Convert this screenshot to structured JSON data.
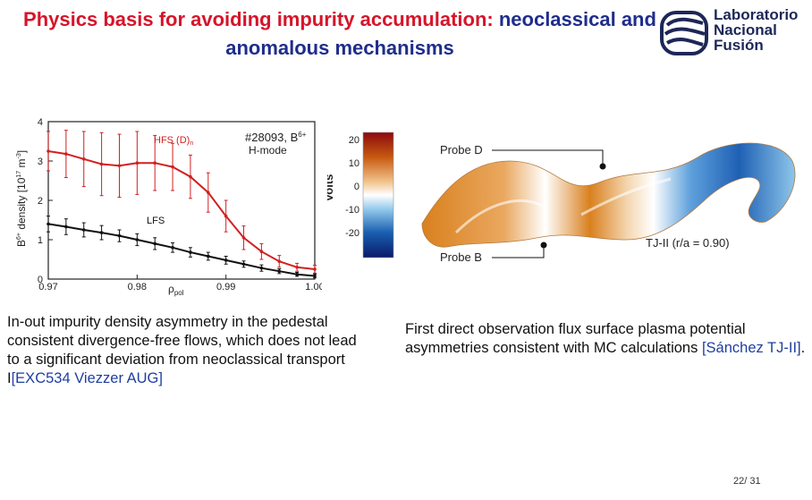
{
  "slide": {
    "title_part1": "Physics basis for avoiding impurity accumulation: ",
    "title_part2": "neoclassical and anomalous mechanisms",
    "page_number": "22/ 31"
  },
  "logo": {
    "line1": "Laboratorio",
    "line2": "Nacional",
    "line3": "Fusión"
  },
  "chart_data": {
    "type": "line",
    "annotation_shot": "#28093, B",
    "annotation_mode": "H-mode",
    "xlabel": "ρpol",
    "ylabel": "B density [10 m ]",
    "xlim": [
      0.97,
      1.0
    ],
    "ylim": [
      0,
      4
    ],
    "xticks": [
      "0.97",
      "0.98",
      "0.99",
      "1.00"
    ],
    "yticks": [
      "0",
      "1",
      "2",
      "3",
      "4"
    ],
    "series": [
      {
        "name": "HFS (D)",
        "color": "#d22020",
        "x": [
          0.97,
          0.972,
          0.974,
          0.976,
          0.978,
          0.98,
          0.982,
          0.984,
          0.986,
          0.988,
          0.99,
          0.992,
          0.994,
          0.996,
          0.998,
          1.0
        ],
        "y": [
          3.25,
          3.18,
          3.05,
          2.92,
          2.88,
          2.95,
          2.95,
          2.85,
          2.6,
          2.2,
          1.6,
          1.05,
          0.7,
          0.45,
          0.3,
          0.25
        ],
        "err": [
          0.5,
          0.6,
          0.7,
          0.8,
          0.8,
          0.8,
          0.7,
          0.6,
          0.55,
          0.5,
          0.4,
          0.3,
          0.2,
          0.15,
          0.1,
          0.1
        ]
      },
      {
        "name": "LFS",
        "color": "#111111",
        "x": [
          0.97,
          0.972,
          0.974,
          0.976,
          0.978,
          0.98,
          0.982,
          0.984,
          0.986,
          0.988,
          0.99,
          0.992,
          0.994,
          0.996,
          0.998,
          1.0
        ],
        "y": [
          1.4,
          1.33,
          1.25,
          1.18,
          1.1,
          1.0,
          0.9,
          0.8,
          0.68,
          0.58,
          0.48,
          0.38,
          0.28,
          0.2,
          0.12,
          0.08
        ],
        "err": [
          0.2,
          0.2,
          0.18,
          0.18,
          0.15,
          0.15,
          0.15,
          0.12,
          0.12,
          0.1,
          0.1,
          0.08,
          0.08,
          0.06,
          0.05,
          0.05
        ]
      }
    ]
  },
  "colorbar": {
    "label": "Volts",
    "ticks": [
      "20",
      "10",
      "0",
      "-10",
      "-20"
    ]
  },
  "surface": {
    "probe_d": "Probe D",
    "probe_b": "Probe B",
    "device_label": "TJ-II (r/a = 0.90)"
  },
  "captions": {
    "left_text": "In-out impurity density asymmetry in the pedestal consistent divergence-free flows, which does not lead to a significant deviation from neoclassical transport I",
    "left_ref": "[EXC534 Viezzer AUG]",
    "right_text": "First direct observation flux surface plasma potential asymmetries consistent with MC calculations ",
    "right_ref": "[Sánchez TJ-II]",
    "right_end": "."
  }
}
